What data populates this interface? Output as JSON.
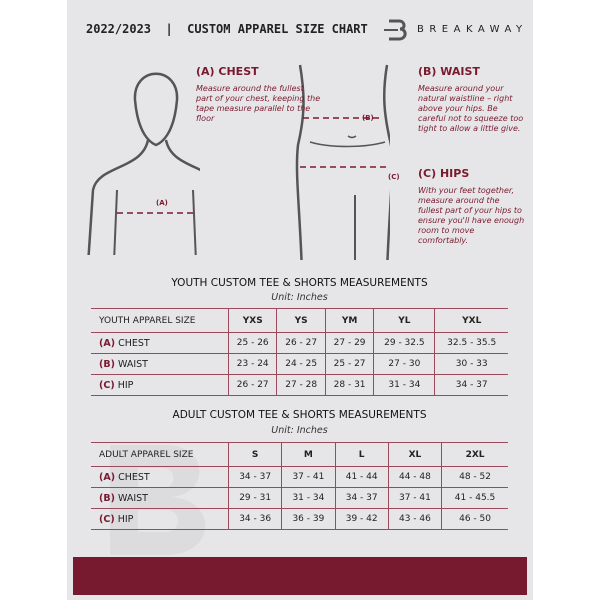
{
  "header": {
    "title": "2022/2023  |  CUSTOM APPAREL SIZE CHART",
    "brand": "BREAKAWAY"
  },
  "measures": {
    "chest": {
      "title": "(A) CHEST",
      "desc": "Measure around the fullest part of your chest, keeping the tape measure parallel to the floor",
      "marker": "(A)"
    },
    "waist": {
      "title": "(B) WAIST",
      "desc": "Measure around your natural waistline – right above your hips. Be careful not to squeeze too tight to allow a little give.",
      "marker": "(B)"
    },
    "hips": {
      "title": "(C) HIPS",
      "desc": "With your feet together, measure around the fullest part of your hips to ensure you'll have enough room to move comfortably.",
      "marker": "(C)"
    }
  },
  "youth": {
    "title": "YOUTH CUSTOM TEE & SHORTS MEASUREMENTS",
    "unit": "Unit: Inches",
    "header": "YOUTH APPAREL SIZE",
    "sizes": [
      "YXS",
      "YS",
      "YM",
      "YL",
      "YXL"
    ],
    "rows": [
      {
        "code": "(A)",
        "name": "CHEST",
        "values": [
          "25 - 26",
          "26 - 27",
          "27 - 29",
          "29 - 32.5",
          "32.5 - 35.5"
        ]
      },
      {
        "code": "(B)",
        "name": "WAIST",
        "values": [
          "23 - 24",
          "24 - 25",
          "25 - 27",
          "27 - 30",
          "30 - 33"
        ]
      },
      {
        "code": "(C)",
        "name": "HIP",
        "values": [
          "26 - 27",
          "27 - 28",
          "28 - 31",
          "31 - 34",
          "34 - 37"
        ]
      }
    ]
  },
  "adult": {
    "title": "ADULT CUSTOM TEE & SHORTS MEASUREMENTS",
    "unit": "Unit: Inches",
    "header": "ADULT APPAREL SIZE",
    "sizes": [
      "S",
      "M",
      "L",
      "XL",
      "2XL"
    ],
    "rows": [
      {
        "code": "(A)",
        "name": "CHEST",
        "values": [
          "34 - 37",
          "37 - 41",
          "41 - 44",
          "44 - 48",
          "48 - 52"
        ]
      },
      {
        "code": "(B)",
        "name": "WAIST",
        "values": [
          "29 - 31",
          "31 - 34",
          "34 - 37",
          "37 - 41",
          "41 - 45.5"
        ]
      },
      {
        "code": "(C)",
        "name": "HIP",
        "values": [
          "34 - 36",
          "36 - 39",
          "39 - 42",
          "43 - 46",
          "46 - 50"
        ]
      }
    ]
  },
  "colors": {
    "accent": "#771a2f",
    "background": "#e6e6e8"
  }
}
